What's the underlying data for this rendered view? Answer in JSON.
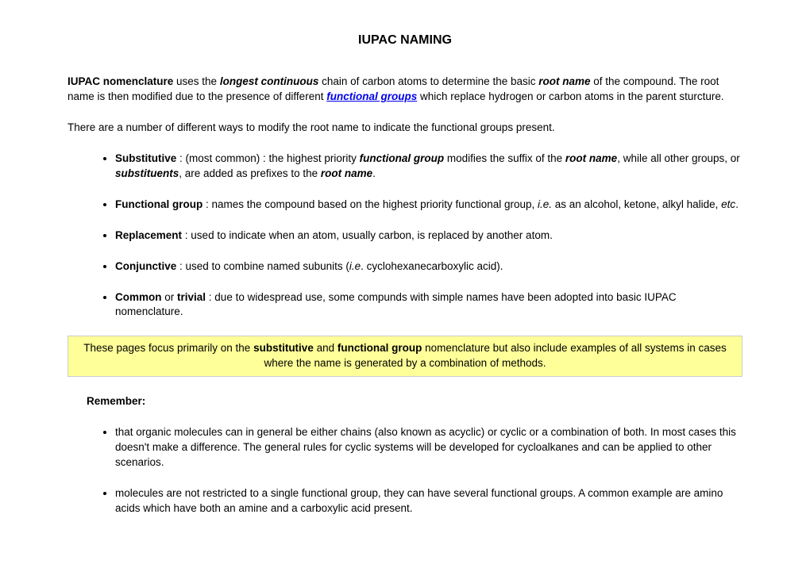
{
  "title": "IUPAC NAMING",
  "para1_part1": "IUPAC nomenclature",
  "para1_part2": " uses the ",
  "para1_part3": "longest continuous",
  "para1_part4": " chain of carbon atoms to determine the basic ",
  "para1_part5": "root name",
  "para1_part6": " of the compound. The root name is then modified due to the presence of different ",
  "para1_link": "functional groups",
  "para1_part7": " which replace hydrogen or carbon atoms in the parent sturcture.",
  "para2": "There are a number of different ways to modify the root name to indicate the functional groups present.",
  "methods": {
    "item1_label": "Substitutive",
    "item1_a": " : (most common) : the highest priority ",
    "item1_b": "functional group",
    "item1_c": " modifies the suffix of the ",
    "item1_d": "root name",
    "item1_e": ", while all other groups, or ",
    "item1_f": "substituents",
    "item1_g": ", are added as prefixes to the ",
    "item1_h": "root name",
    "item1_i": ".",
    "item2_label": "Functional group",
    "item2_a": " : names the compound based on the highest priority functional group, ",
    "item2_b": "i.e.",
    "item2_c": " as an alcohol, ketone, alkyl halide, ",
    "item2_d": "etc",
    "item2_e": ".",
    "item3_label": "Replacement",
    "item3_a": " : used to indicate when an atom, usually carbon, is replaced by another atom.",
    "item4_label": "Conjunctive",
    "item4_a": " : used to combine named subunits (",
    "item4_b": "i.e",
    "item4_c": ". cyclohexanecarboxylic acid).",
    "item5_label": "Common",
    "item5_a": " or ",
    "item5_b": "trivial",
    "item5_c": " : due to widespread use, some compunds with simple names have been adopted into basic IUPAC nomenclature."
  },
  "highlight_a": "These pages focus primarily on the ",
  "highlight_b": "substitutive",
  "highlight_c": " and ",
  "highlight_d": "functional group",
  "highlight_e": " nomenclature but also include examples of all systems in cases where the name is generated by a combination of methods.",
  "remember_header": "Remember:",
  "remember": {
    "item1": "that organic molecules can in general be either chains (also known as acyclic) or cyclic or a combination of both. In most cases this doesn't make a difference.  The general rules for cyclic systems will be developed for cycloalkanes and can be applied to other scenarios.",
    "item2": "molecules are not restricted to a single functional group, they can have several functional groups. A common example are amino acids which have both an amine and a carboxylic acid present."
  },
  "colors": {
    "highlight_bg": "#ffff99",
    "highlight_border": "#cccccc",
    "link_color": "#0000ee",
    "text_color": "#000000",
    "bg_color": "#ffffff"
  }
}
